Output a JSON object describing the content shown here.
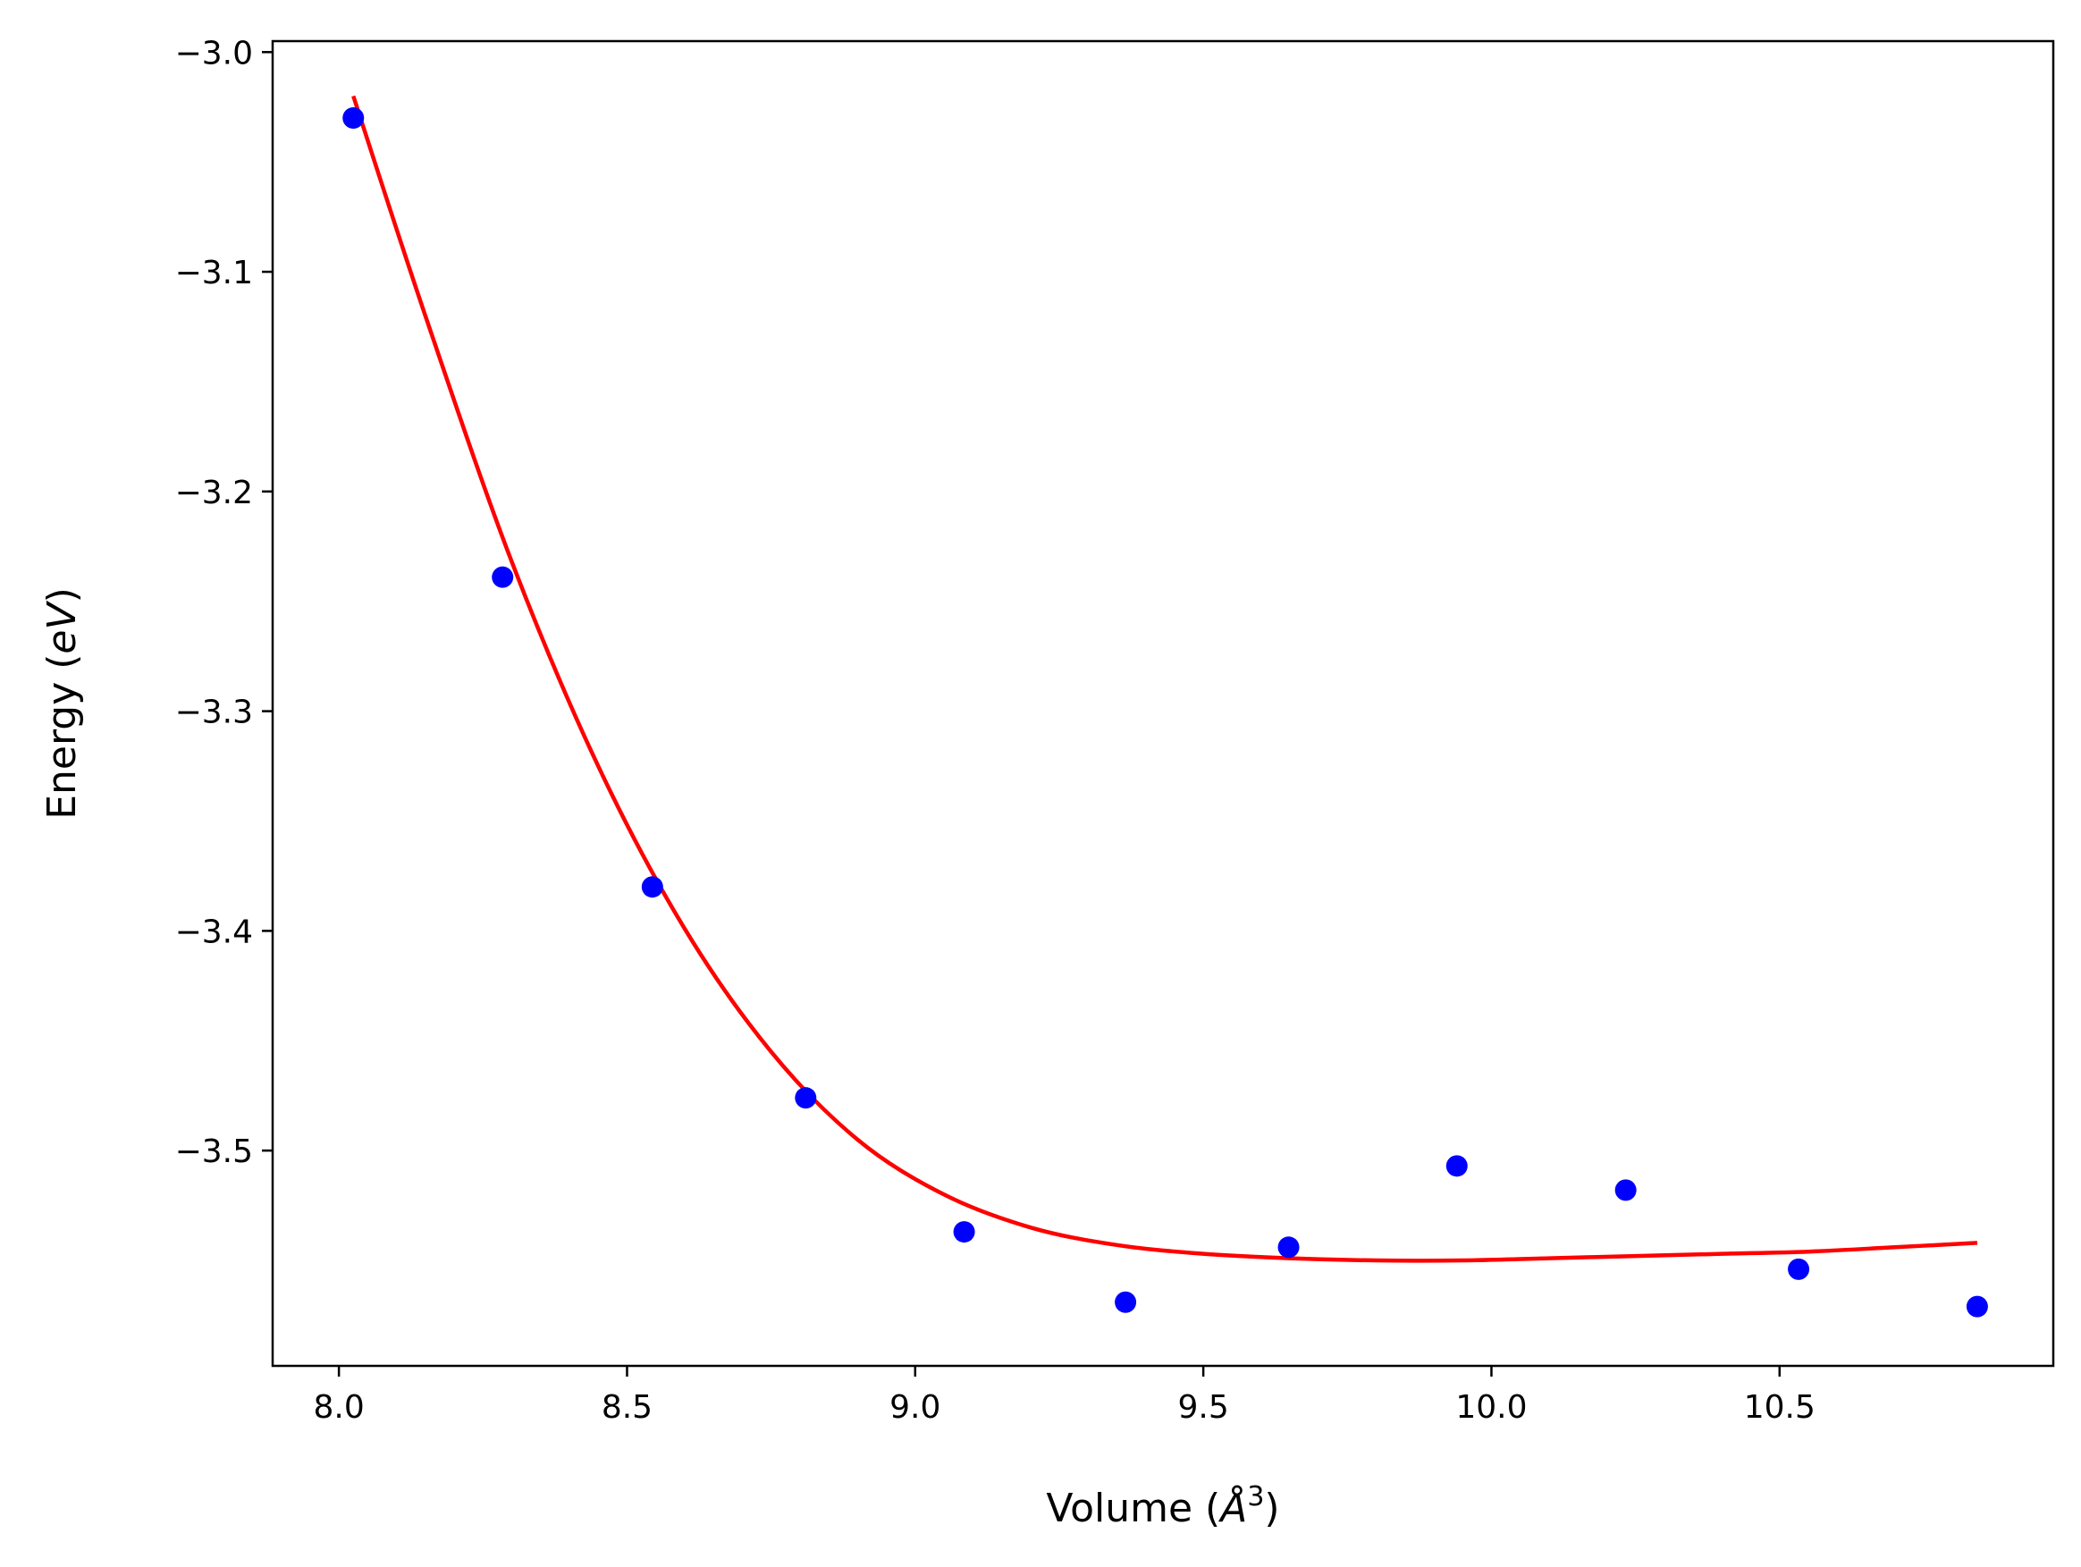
{
  "chart_data": {
    "type": "scatter",
    "xlabel_main": "Volume (",
    "xlabel_unit": "Å",
    "xlabel_exp": "3",
    "xlabel_close": ")",
    "ylabel_main": "Energy (",
    "ylabel_unit": "eV",
    "ylabel_close": ")",
    "xlim": [
      7.885,
      10.975
    ],
    "ylim": [
      -3.598,
      -2.995
    ],
    "grid": false,
    "legend": "none",
    "xticks": [
      8.0,
      8.5,
      9.0,
      9.5,
      10.0,
      10.5
    ],
    "xtick_labels": [
      "8.0",
      "8.5",
      "9.0",
      "9.5",
      "10.0",
      "10.5"
    ],
    "yticks": [
      -3.0,
      -3.1,
      -3.2,
      -3.3,
      -3.4,
      -3.5
    ],
    "ytick_labels": [
      "−3.0",
      "−3.1",
      "−3.2",
      "−3.3",
      "−3.4",
      "−3.5"
    ],
    "series": [
      {
        "kind": "points",
        "color": "#0000ff",
        "x": [
          8.025,
          8.284,
          8.544,
          8.81,
          9.085,
          9.365,
          9.648,
          9.94,
          10.233,
          10.533,
          10.843
        ],
        "y": [
          -3.03,
          -3.239,
          -3.38,
          -3.476,
          -3.537,
          -3.569,
          -3.544,
          -3.507,
          -3.518,
          -3.554,
          -3.571
        ]
      },
      {
        "kind": "fit-curve",
        "color": "#ff0000",
        "x": [
          8.025,
          8.15,
          8.3,
          8.45,
          8.6,
          8.75,
          8.9,
          9.05,
          9.2,
          9.35,
          9.5,
          9.65,
          9.8,
          9.95,
          10.1,
          10.25,
          10.4,
          10.55,
          10.7,
          10.843
        ],
        "y": [
          -3.02,
          -3.12,
          -3.232,
          -3.325,
          -3.399,
          -3.455,
          -3.495,
          -3.52,
          -3.535,
          -3.543,
          -3.547,
          -3.549,
          -3.55,
          -3.55,
          -3.549,
          -3.548,
          -3.547,
          -3.546,
          -3.544,
          -3.542
        ]
      }
    ]
  }
}
